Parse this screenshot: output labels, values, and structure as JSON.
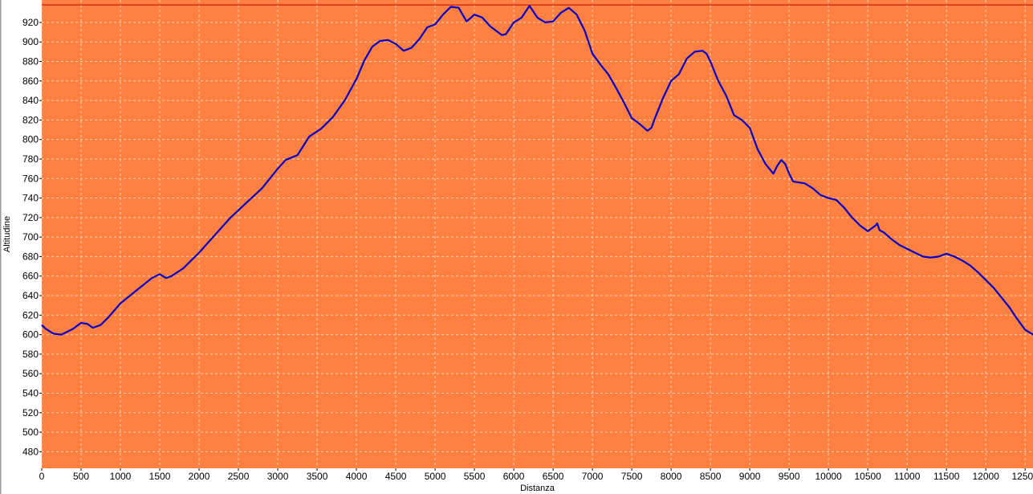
{
  "chart_data": {
    "type": "line",
    "xlabel": "Distanza",
    "ylabel": "Altitudine",
    "xlim": [
      0,
      12600
    ],
    "ylim": [
      463,
      943
    ],
    "xticks": [
      0,
      500,
      1000,
      1500,
      2000,
      2500,
      3000,
      3500,
      4000,
      4500,
      5000,
      5500,
      6000,
      6500,
      7000,
      7500,
      8000,
      8500,
      9000,
      9500,
      10000,
      10500,
      11000,
      11500,
      12000,
      12500
    ],
    "yticks": [
      480,
      500,
      520,
      540,
      560,
      580,
      600,
      620,
      640,
      660,
      680,
      700,
      720,
      740,
      760,
      780,
      800,
      820,
      840,
      860,
      880,
      900,
      920
    ],
    "max_line": 938,
    "grid": true,
    "colors": {
      "background": "#ff8040",
      "line": "#0000cc",
      "max_line": "#cc0000",
      "grid": "#ffd2b0"
    },
    "series": [
      {
        "x": [
          0,
          50,
          150,
          250,
          400,
          500,
          580,
          650,
          750,
          850,
          1000,
          1200,
          1400,
          1500,
          1580,
          1650,
          1800,
          2000,
          2200,
          2400,
          2600,
          2800,
          3000,
          3100,
          3250,
          3400,
          3550,
          3700,
          3850,
          4000,
          4100,
          4200,
          4300,
          4400,
          4500,
          4600,
          4700,
          4800,
          4900,
          5000,
          5100,
          5200,
          5300,
          5400,
          5500,
          5600,
          5700,
          5800,
          5850,
          5900,
          6000,
          6100,
          6200,
          6300,
          6400,
          6500,
          6600,
          6700,
          6800,
          6900,
          7000,
          7100,
          7200,
          7300,
          7400,
          7500,
          7600,
          7700,
          7750,
          7800,
          7900,
          8000,
          8100,
          8200,
          8300,
          8400,
          8450,
          8500,
          8600,
          8700,
          8800,
          8900,
          9000,
          9100,
          9200,
          9300,
          9350,
          9400,
          9450,
          9500,
          9550,
          9700,
          9800,
          9900,
          10000,
          10100,
          10200,
          10300,
          10400,
          10500,
          10600,
          10620,
          10650,
          10700,
          10800,
          10900,
          11000,
          11100,
          11200,
          11300,
          11400,
          11500,
          11600,
          11700,
          11800,
          11900,
          12000,
          12100,
          12200,
          12300,
          12400,
          12500,
          12600
        ],
        "y": [
          610,
          606,
          601,
          600,
          606,
          612,
          611,
          607,
          610,
          618,
          632,
          645,
          658,
          662,
          658,
          660,
          668,
          684,
          702,
          720,
          735,
          750,
          770,
          779,
          784,
          803,
          811,
          823,
          840,
          862,
          881,
          895,
          901,
          902,
          898,
          891,
          894,
          903,
          915,
          918,
          928,
          936,
          935,
          921,
          928,
          925,
          916,
          910,
          907,
          908,
          920,
          925,
          937,
          925,
          920,
          921,
          930,
          935,
          928,
          912,
          888,
          877,
          867,
          853,
          838,
          822,
          816,
          809,
          812,
          823,
          843,
          860,
          867,
          883,
          890,
          891,
          888,
          880,
          860,
          845,
          825,
          820,
          812,
          790,
          775,
          765,
          773,
          779,
          775,
          765,
          757,
          755,
          750,
          743,
          740,
          738,
          730,
          720,
          712,
          706,
          712,
          714,
          707,
          705,
          698,
          692,
          688,
          684,
          680,
          679,
          680,
          683,
          680,
          676,
          671,
          664,
          656,
          648,
          638,
          628,
          616,
          605,
          600
        ]
      }
    ]
  }
}
